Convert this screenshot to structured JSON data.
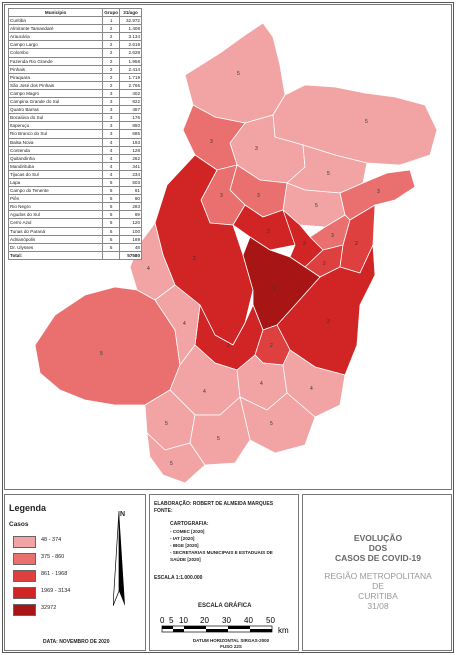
{
  "table": {
    "headers": [
      "Município",
      "Grupo",
      "31/ago"
    ],
    "rows": [
      [
        "Curitiba",
        "1",
        "32.972"
      ],
      [
        "Almirante Tamandaré",
        "2",
        "1.408"
      ],
      [
        "Araucária",
        "2",
        "3.134"
      ],
      [
        "Campo Largo",
        "2",
        "2.619"
      ],
      [
        "Colombo",
        "2",
        "2.628"
      ],
      [
        "Fazenda Rio Grande",
        "2",
        "1.958"
      ],
      [
        "Pinhais",
        "2",
        "2.414"
      ],
      [
        "Piraquara",
        "2",
        "1.719"
      ],
      [
        "São José dos Pinhais",
        "2",
        "2.765"
      ],
      [
        "Campo Magro",
        "3",
        "402"
      ],
      [
        "Campina Grande do Sul",
        "3",
        "822"
      ],
      [
        "Quatro Barras",
        "3",
        "457"
      ],
      [
        "Bocaiúva do Sul",
        "3",
        "176"
      ],
      [
        "Itaperuçu",
        "3",
        "850"
      ],
      [
        "Rio Branco do Sul",
        "3",
        "685"
      ],
      [
        "Balsa Nova",
        "4",
        "193"
      ],
      [
        "Contenda",
        "4",
        "128"
      ],
      [
        "Quitandinha",
        "4",
        "262"
      ],
      [
        "Mandirituba",
        "4",
        "341"
      ],
      [
        "Tijucas do Sul",
        "4",
        "234"
      ],
      [
        "Lapa",
        "5",
        "503"
      ],
      [
        "Campo do Tenente",
        "5",
        "61"
      ],
      [
        "Piên",
        "5",
        "60"
      ],
      [
        "Rio Negro",
        "5",
        "283"
      ],
      [
        "Agudos do Sul",
        "5",
        "69"
      ],
      [
        "Cerro Azul",
        "5",
        "120"
      ],
      [
        "Tunas do Paraná",
        "5",
        "100"
      ],
      [
        "Adrianópolis",
        "5",
        "169"
      ],
      [
        "Dr. Ulysses",
        "5",
        "48"
      ]
    ],
    "total_label": "Total:",
    "total_value": "57580"
  },
  "legend": {
    "title": "Legenda",
    "subtitle": "Casos",
    "items": [
      {
        "label": "48 - 374",
        "color": "#f2a3a3"
      },
      {
        "label": "375 - 860",
        "color": "#ea7070"
      },
      {
        "label": "861 - 1968",
        "color": "#de3f3f"
      },
      {
        "label": "1969 - 3134",
        "color": "#d12424"
      },
      {
        "label": "32972",
        "color": "#a81515"
      }
    ],
    "north": "N",
    "date": "DATA: NOVEMBRO DE 2020"
  },
  "credits": {
    "elaboration": "ELABORAÇÃO: ROBERT DE ALMEIDA MARQUES",
    "source": "FONTE:",
    "cartography_heading": "CARTOGRAFIA:",
    "cartography": [
      "- COMEC [2020]",
      "- IAT [2020]",
      "- IBGE [2020]",
      "- SECRETARIAS MUNICIPAIS E ESTADUAIS DE SAÚDE [2020]"
    ],
    "scale": "ESCALA 1:1.000.000",
    "graphic_scale": "ESCALA GRÁFICA",
    "scale_ticks": [
      "0",
      "5",
      "10",
      "20",
      "30",
      "40",
      "50"
    ],
    "scale_unit": "km",
    "datum": "DATUM HORIZONTAL SIRGAS-2000",
    "fuso": "FUSO 22S"
  },
  "title": {
    "line1": "EVOLUÇÃO",
    "line2": "DOS",
    "line3": "CASOS DE COVID-19",
    "region1": "REGIÃO METROPOLITANA",
    "region2": "DE",
    "region3": "CURITIBA",
    "date": "31/08"
  }
}
